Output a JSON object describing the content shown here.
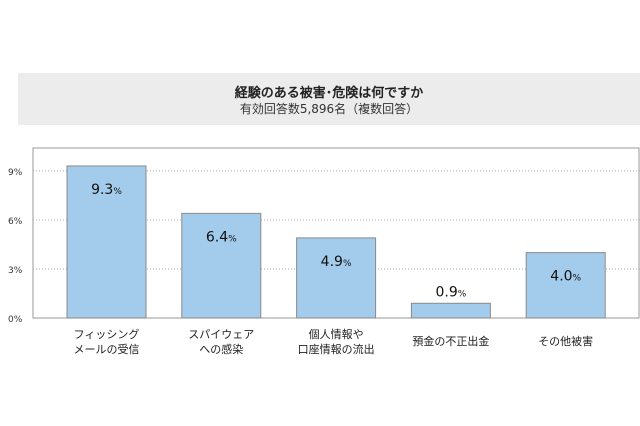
{
  "chart_data": {
    "type": "bar",
    "title": "経験のある被害･危険は何ですか",
    "subtitle": "有効回答数5,896名（複数回答）",
    "categories": [
      [
        "フィッシング",
        "メールの受信"
      ],
      [
        "スパイウェア",
        "への感染"
      ],
      [
        "個人情報や",
        "口座情報の流出"
      ],
      [
        "預金の不正出金"
      ],
      [
        "その他被害"
      ]
    ],
    "values": [
      9.3,
      6.4,
      4.9,
      0.9,
      4.0
    ],
    "value_labels": [
      "9.3",
      "6.4",
      "4.9",
      "0.9",
      "4.0"
    ],
    "value_unit": "%",
    "yticks": [
      "0%",
      "3%",
      "6%",
      "9%"
    ],
    "ytick_values": [
      0,
      3,
      6,
      9
    ],
    "ylim": [
      0,
      10.4
    ],
    "grid": true,
    "colors": {
      "bar": "#a3cbeb",
      "bar_border": "#8a8a8a",
      "title_bg": "#ececec"
    }
  }
}
